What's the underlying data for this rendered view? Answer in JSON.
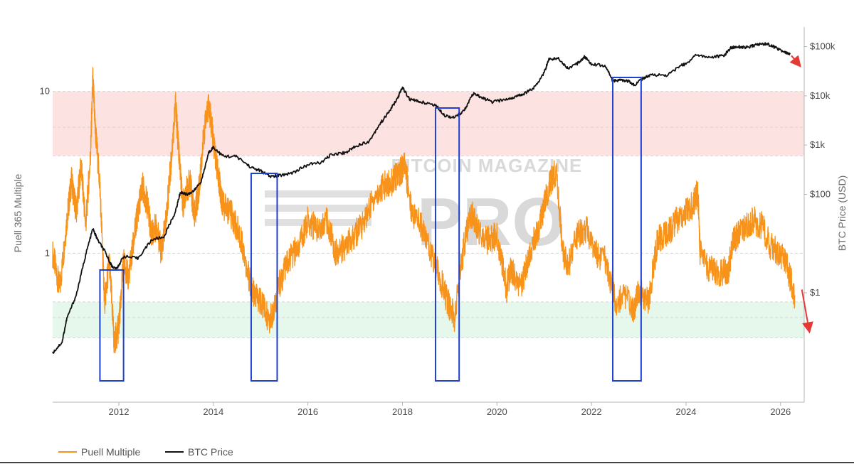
{
  "chart_data": {
    "type": "line",
    "title": "",
    "watermark": {
      "line1": "BITCOIN MAGAZINE",
      "line2": "PRO"
    },
    "xlabel": "",
    "xlim": [
      2010.6,
      2026.5
    ],
    "x_ticks": [
      2012,
      2014,
      2016,
      2018,
      2020,
      2022,
      2024,
      2026
    ],
    "x_tick_labels": [
      "2012",
      "2014",
      "2016",
      "2018",
      "2020",
      "2022",
      "2024",
      "2026"
    ],
    "y_left": {
      "label": "Puell 365 Multiple",
      "scale": "log",
      "range": [
        0.12,
        25
      ],
      "ticks": [
        1,
        10
      ],
      "tick_labels": [
        "1",
        "10"
      ]
    },
    "y_right": {
      "label": "BTC Price (USD)",
      "scale": "log",
      "range": [
        0.006,
        250000
      ],
      "ticks": [
        1,
        100,
        1000,
        10000,
        100000
      ],
      "tick_labels": [
        "$1",
        "$100",
        "$1k",
        "$10k",
        "$100k"
      ]
    },
    "bands": [
      {
        "name": "overheated",
        "from": 4.0,
        "to": 10,
        "color": "#fde2e2"
      },
      {
        "name": "undervalued",
        "from": 0.3,
        "to": 0.5,
        "color": "#e6f7ec"
      }
    ],
    "highlight_periods": [
      {
        "start": 2011.6,
        "end": 2012.1
      },
      {
        "start": 2014.8,
        "end": 2015.35
      },
      {
        "start": 2018.7,
        "end": 2019.2
      },
      {
        "start": 2022.45,
        "end": 2023.05
      }
    ],
    "series": [
      {
        "name": "Puell Multiple",
        "axis": "left",
        "color": "#f7931a",
        "x": [
          2010.6,
          2010.75,
          2010.9,
          2011.0,
          2011.1,
          2011.2,
          2011.3,
          2011.4,
          2011.45,
          2011.5,
          2011.6,
          2011.7,
          2011.8,
          2011.9,
          2012.0,
          2012.1,
          2012.2,
          2012.3,
          2012.4,
          2012.5,
          2012.6,
          2012.7,
          2012.8,
          2012.9,
          2013.0,
          2013.1,
          2013.2,
          2013.25,
          2013.35,
          2013.5,
          2013.6,
          2013.7,
          2013.8,
          2013.9,
          2014.0,
          2014.1,
          2014.2,
          2014.4,
          2014.6,
          2014.8,
          2015.0,
          2015.2,
          2015.4,
          2015.6,
          2015.8,
          2016.0,
          2016.2,
          2016.4,
          2016.6,
          2016.8,
          2017.0,
          2017.2,
          2017.4,
          2017.6,
          2017.8,
          2017.95,
          2018.05,
          2018.2,
          2018.4,
          2018.6,
          2018.8,
          2018.95,
          2019.1,
          2019.3,
          2019.45,
          2019.6,
          2019.8,
          2020.0,
          2020.2,
          2020.3,
          2020.5,
          2020.7,
          2020.9,
          2021.1,
          2021.25,
          2021.4,
          2021.5,
          2021.7,
          2021.9,
          2022.1,
          2022.3,
          2022.5,
          2022.7,
          2022.9,
          2023.0,
          2023.2,
          2023.4,
          2023.6,
          2023.8,
          2024.0,
          2024.15,
          2024.25,
          2024.3,
          2024.5,
          2024.7,
          2024.9,
          2025.0,
          2025.2,
          2025.4,
          2025.6,
          2025.8,
          2026.0,
          2026.15,
          2026.3
        ],
        "values": [
          1.0,
          0.6,
          1.6,
          2.8,
          1.8,
          3.5,
          1.5,
          4.0,
          12.0,
          6.0,
          2.6,
          0.5,
          0.9,
          0.28,
          0.35,
          0.9,
          0.7,
          1.1,
          1.8,
          2.6,
          2.0,
          1.3,
          1.5,
          1.0,
          1.6,
          3.5,
          8.5,
          5.0,
          2.0,
          2.8,
          1.7,
          2.5,
          5.5,
          8.5,
          5.0,
          3.0,
          2.0,
          1.7,
          1.2,
          0.6,
          0.5,
          0.38,
          0.65,
          0.9,
          1.1,
          1.6,
          1.4,
          1.6,
          1.0,
          1.1,
          1.3,
          1.6,
          2.2,
          2.6,
          2.8,
          3.2,
          3.5,
          1.8,
          1.5,
          1.0,
          0.7,
          0.5,
          0.4,
          1.1,
          1.8,
          1.4,
          1.2,
          1.3,
          0.6,
          0.8,
          0.6,
          1.0,
          1.5,
          2.6,
          3.2,
          1.0,
          0.8,
          1.3,
          1.4,
          1.0,
          0.9,
          0.5,
          0.55,
          0.45,
          0.6,
          0.5,
          1.2,
          1.3,
          1.6,
          1.8,
          2.0,
          2.4,
          1.0,
          0.8,
          0.75,
          0.8,
          1.2,
          1.4,
          1.6,
          1.5,
          1.1,
          1.0,
          0.8,
          0.55
        ]
      },
      {
        "name": "BTC Price",
        "axis": "right",
        "color": "#111111",
        "x": [
          2010.6,
          2010.8,
          2010.9,
          2011.1,
          2011.3,
          2011.45,
          2011.55,
          2011.7,
          2011.85,
          2011.95,
          2012.1,
          2012.4,
          2012.7,
          2012.95,
          2013.2,
          2013.3,
          2013.45,
          2013.6,
          2013.75,
          2013.9,
          2014.0,
          2014.2,
          2014.5,
          2014.8,
          2015.0,
          2015.2,
          2015.4,
          2015.7,
          2016.0,
          2016.3,
          2016.5,
          2016.8,
          2017.0,
          2017.3,
          2017.5,
          2017.7,
          2017.9,
          2018.0,
          2018.15,
          2018.4,
          2018.7,
          2018.9,
          2019.1,
          2019.3,
          2019.5,
          2019.7,
          2019.9,
          2020.2,
          2020.4,
          2020.6,
          2020.8,
          2021.0,
          2021.1,
          2021.3,
          2021.5,
          2021.7,
          2021.85,
          2022.0,
          2022.3,
          2022.45,
          2022.6,
          2022.8,
          2022.9,
          2023.1,
          2023.3,
          2023.6,
          2023.9,
          2024.0,
          2024.2,
          2024.5,
          2024.8,
          2024.95,
          2025.1,
          2025.3,
          2025.5,
          2025.7,
          2025.9,
          2026.1,
          2026.2
        ],
        "values": [
          0.06,
          0.1,
          0.3,
          0.9,
          6.0,
          20.0,
          12.0,
          7.0,
          3.5,
          3.0,
          5.5,
          5.0,
          12.0,
          13.5,
          45.0,
          110.0,
          100.0,
          120.0,
          190.0,
          700.0,
          900.0,
          600.0,
          580.0,
          350.0,
          300.0,
          230.0,
          240.0,
          280.0,
          400.0,
          450.0,
          650.0,
          700.0,
          950.0,
          1200.0,
          2500.0,
          4500.0,
          9000.0,
          15000.0,
          8500.0,
          7500.0,
          6500.0,
          4000.0,
          3600.0,
          5000.0,
          11000.0,
          9000.0,
          7500.0,
          8500.0,
          9500.0,
          11500.0,
          15000.0,
          30000.0,
          55000.0,
          58000.0,
          36000.0,
          45000.0,
          62000.0,
          45000.0,
          40000.0,
          20000.0,
          21000.0,
          19500.0,
          16500.0,
          23000.0,
          27000.0,
          26000.0,
          42000.0,
          44000.0,
          68000.0,
          61000.0,
          65000.0,
          95000.0,
          100000.0,
          95000.0,
          110000.0,
          115000.0,
          95000.0,
          75000.0,
          70000.0
        ]
      }
    ],
    "legend": {
      "position": "bottom-left",
      "entries": [
        {
          "label": "Puell Multiple",
          "color": "#f7931a"
        },
        {
          "label": "BTC Price",
          "color": "#111111"
        }
      ]
    },
    "annotations": [
      {
        "type": "arrow",
        "series": "BTC Price",
        "direction": "down",
        "color": "#e53935"
      },
      {
        "type": "arrow",
        "series": "Puell Multiple",
        "direction": "down",
        "color": "#e53935"
      }
    ]
  }
}
